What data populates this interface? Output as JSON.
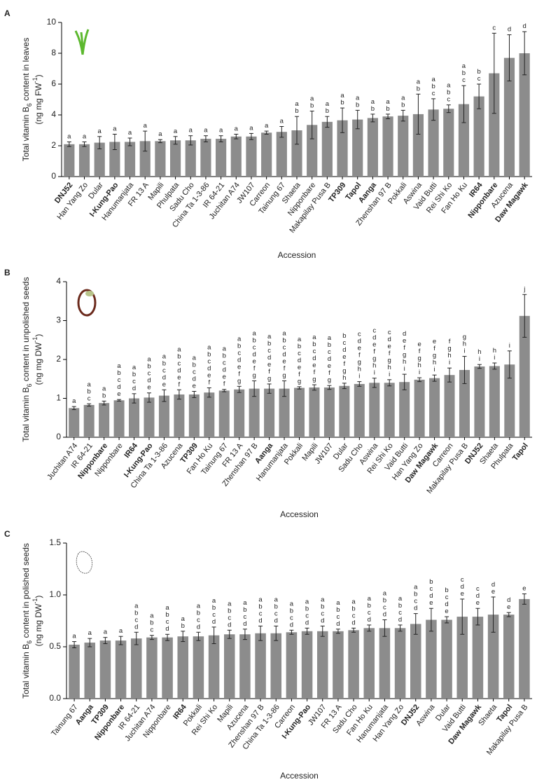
{
  "chart_data": [
    {
      "type": "bar",
      "panel": "A",
      "ylabel": [
        [
          "Total vitamin B",
          "6",
          " content in leaves"
        ],
        [
          "(ng mg FW",
          "-1",
          ")"
        ]
      ],
      "xlabel": "Accession",
      "color": "#8c8c8c",
      "categories": [
        "DNJ52",
        "Han Yang Zo",
        "Dular",
        "I-Kung-Pao",
        "Hanumanjata",
        "FR 13 A",
        "Mapili",
        "Phulpata",
        "Sadu Cho",
        "China Ta 1-3-86",
        "IR 64-21",
        "Juchitan A74",
        "JW107",
        "Carreon",
        "Tainung 67",
        "Shaeta",
        "Nipponbare",
        "Makapilay Pusa B",
        "TP309",
        "Tapol",
        "Aanga",
        "Zhenshan 97 B",
        "Pokkali",
        "Aswina",
        "Vaid Butti",
        "Rei Shi Ko",
        "Fan Ho Ku",
        "IR64",
        "Nipponbare",
        "Azucena",
        "Daw Magawk"
      ],
      "bold": [
        true,
        false,
        false,
        true,
        false,
        false,
        false,
        false,
        false,
        false,
        false,
        false,
        false,
        false,
        false,
        false,
        false,
        false,
        true,
        true,
        true,
        false,
        false,
        false,
        false,
        false,
        false,
        true,
        true,
        false,
        true
      ],
      "values": [
        2.1,
        2.1,
        2.2,
        2.25,
        2.25,
        2.3,
        2.3,
        2.35,
        2.35,
        2.45,
        2.45,
        2.6,
        2.6,
        2.85,
        2.9,
        3.0,
        3.35,
        3.55,
        3.65,
        3.7,
        3.8,
        3.9,
        3.95,
        4.05,
        4.35,
        4.4,
        4.7,
        5.2,
        6.7,
        7.7,
        8.0
      ],
      "errors": [
        0.15,
        0.15,
        0.4,
        0.5,
        0.25,
        0.65,
        0.1,
        0.25,
        0.3,
        0.2,
        0.2,
        0.15,
        0.2,
        0.1,
        0.35,
        0.9,
        0.9,
        0.35,
        0.8,
        0.6,
        0.25,
        0.15,
        0.35,
        1.3,
        0.7,
        0.25,
        1.2,
        0.8,
        2.6,
        1.5,
        1.4
      ],
      "letters": [
        "a",
        "a",
        "a",
        "a",
        "a",
        "a",
        "a",
        "a",
        "a",
        "a",
        "a",
        "a",
        "a",
        "a",
        "a",
        "ab",
        "ab",
        "ab",
        "ab",
        "ab",
        "ab",
        "ab",
        "ab",
        "ab",
        "abc",
        "abc",
        "abc",
        "bc",
        "c",
        "d",
        "d"
      ],
      "ylim": [
        0,
        10
      ],
      "yticks": [
        0,
        2,
        4,
        6,
        8,
        10
      ]
    },
    {
      "type": "bar",
      "panel": "B",
      "ylabel": [
        [
          "Total vitamin B",
          "6",
          " content in unpolished seeds"
        ],
        [
          "(ng mg DW",
          "-1",
          ")"
        ]
      ],
      "xlabel": "Accession",
      "color": "#8c8c8c",
      "categories": [
        "Juchitan A74",
        "IR 64-21",
        "Nipponbare",
        "Nipponbare",
        "IR64",
        "I-Kung-Pao",
        "China Ta 1-3-86",
        "Azucena",
        "TP309",
        "Fan Ho Ku",
        "Tainung 67",
        "FR 13 A",
        "Zhenshan 97 B",
        "Aanga",
        "Hanumanjata",
        "Pokkali",
        "Mapili",
        "JW107",
        "Dular",
        "Sadu Cho",
        "Aswina",
        "Rei Shi Ko",
        "Vaid Butti",
        "Han Yang Zo",
        "Daw Magawk",
        "Carreon",
        "Makapilay Pusa B",
        "DNJ52",
        "Shaeta",
        "Phulpata",
        "Tapol"
      ],
      "bold": [
        false,
        false,
        true,
        false,
        true,
        true,
        false,
        false,
        true,
        false,
        false,
        false,
        false,
        true,
        false,
        false,
        false,
        false,
        false,
        false,
        false,
        false,
        false,
        false,
        true,
        false,
        false,
        true,
        false,
        false,
        true
      ],
      "values": [
        0.75,
        0.83,
        0.88,
        0.95,
        1.0,
        1.02,
        1.07,
        1.1,
        1.1,
        1.15,
        1.2,
        1.23,
        1.25,
        1.25,
        1.25,
        1.27,
        1.28,
        1.28,
        1.32,
        1.37,
        1.4,
        1.4,
        1.42,
        1.48,
        1.52,
        1.6,
        1.73,
        1.82,
        1.83,
        1.87,
        3.12
      ],
      "errors": [
        0.04,
        0.03,
        0.05,
        0.02,
        0.12,
        0.12,
        0.15,
        0.12,
        0.08,
        0.12,
        0.03,
        0.08,
        0.2,
        0.12,
        0.2,
        0.03,
        0.07,
        0.05,
        0.07,
        0.06,
        0.12,
        0.08,
        0.2,
        0.05,
        0.08,
        0.18,
        0.35,
        0.05,
        0.08,
        0.35,
        0.55
      ],
      "letters": [
        "a",
        "abc",
        "ab",
        "abcde",
        "abcd",
        "abcde",
        "abcde",
        "abcdef",
        "abcde",
        "abcdef",
        "abcdef",
        "abcdefg",
        "abcdefg",
        "abcdefg",
        "abcdefg",
        "abcdefg",
        "abcdefg",
        "abcdefg",
        "bcdefgh",
        "cdefghi",
        "cdefghi",
        "cdefghi",
        "defghi",
        "efghi",
        "efghi",
        "fghi",
        "ghi",
        "hi",
        "hi",
        "i",
        "j"
      ],
      "ylim": [
        0,
        4
      ],
      "yticks": [
        0,
        1,
        2,
        3,
        4
      ]
    },
    {
      "type": "bar",
      "panel": "C",
      "ylabel": [
        [
          "Total vitamin B",
          "6",
          " content in polished seeds"
        ],
        [
          "(ng mg DW",
          "-1",
          ")"
        ]
      ],
      "xlabel": "Accession",
      "color": "#8c8c8c",
      "categories": [
        "Tainung 67",
        "Aanga",
        "TP309",
        "Nipponbare",
        "IR 64-21",
        "Juchitan A74",
        "Nipponbare",
        "IR64",
        "Pokkali",
        "Rei Shi Ko",
        "Mapili",
        "Azucena",
        "Zhenshan 97 B",
        "China Ta 1-3-86",
        "Carreon",
        "I-Kung-Pao",
        "JW107",
        "FR 13 A",
        "Sadu Cho",
        "Fan Ho Ku",
        "Hanumanjata",
        "Han Yang Zo",
        "DNJ52",
        "Aswina",
        "Dular",
        "Vaid Butti",
        "Daw Magawk",
        "Shaeta",
        "Tapol",
        "Makapilay Pusa B"
      ],
      "bold": [
        false,
        true,
        true,
        true,
        false,
        false,
        false,
        true,
        false,
        false,
        false,
        false,
        false,
        false,
        false,
        true,
        false,
        false,
        false,
        false,
        false,
        false,
        true,
        false,
        false,
        false,
        true,
        false,
        true,
        false
      ],
      "values": [
        0.52,
        0.54,
        0.56,
        0.56,
        0.58,
        0.59,
        0.59,
        0.6,
        0.6,
        0.61,
        0.62,
        0.62,
        0.63,
        0.63,
        0.64,
        0.65,
        0.65,
        0.65,
        0.66,
        0.68,
        0.68,
        0.68,
        0.72,
        0.76,
        0.76,
        0.79,
        0.79,
        0.81,
        0.81,
        0.96
      ],
      "errors": [
        0.03,
        0.04,
        0.03,
        0.04,
        0.06,
        0.02,
        0.03,
        0.05,
        0.04,
        0.08,
        0.04,
        0.05,
        0.07,
        0.07,
        0.02,
        0.03,
        0.05,
        0.02,
        0.02,
        0.03,
        0.08,
        0.03,
        0.1,
        0.11,
        0.03,
        0.17,
        0.08,
        0.17,
        0.02,
        0.05
      ],
      "letters": [
        "a",
        "a",
        "a",
        "a",
        "abcd",
        "abc",
        "abcd",
        "ab",
        "abcd",
        "abcd",
        "abcd",
        "abcd",
        "abcd",
        "abcd",
        "abcd",
        "abcd",
        "abcd",
        "abcd",
        "abcd",
        "abcd",
        "abcd",
        "abcd",
        "abcd",
        "bcde",
        "bcde",
        "cde",
        "cde",
        "de",
        "de",
        "e"
      ],
      "ylim": [
        0,
        1.5
      ],
      "yticks": [
        {
          "value": 0,
          "label": "0.0"
        },
        0.5,
        {
          "value": 1,
          "label": "1.0"
        },
        1.5
      ]
    }
  ]
}
